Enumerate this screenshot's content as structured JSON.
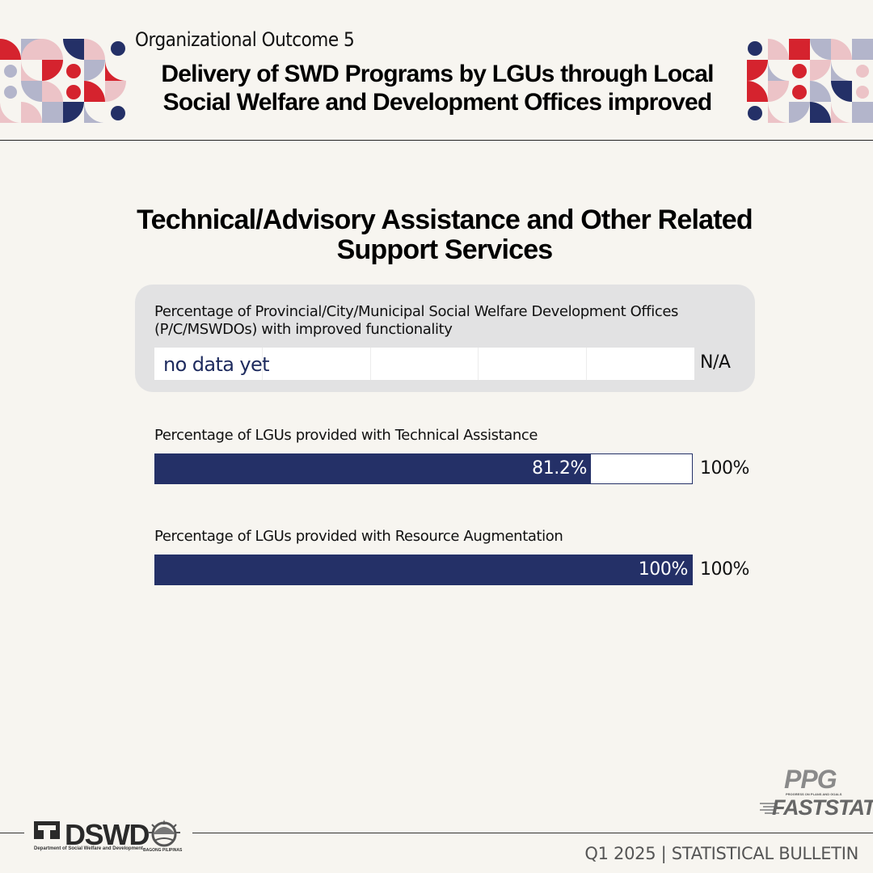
{
  "header": {
    "outcome_label": "Organizational Outcome 5",
    "outcome_title": "Delivery of SWD Programs by LGUs through Local Social Welfare and Development Offices improved"
  },
  "section_title": "Technical/Advisory Assistance and Other Related Support Services",
  "chart_data": {
    "type": "bar",
    "orientation": "horizontal",
    "indicators": [
      {
        "label": "Percentage of Provincial/City/Municipal Social Welfare Development Offices (P/C/MSWDOs) with improved functionality",
        "value": null,
        "value_label": "no data yet",
        "target": null,
        "target_label": "N/A"
      },
      {
        "label": "Percentage of LGUs provided with Technical Assistance",
        "value": 81.2,
        "value_label": "81.2%",
        "target": 100,
        "target_label": "100%"
      },
      {
        "label": "Percentage of LGUs provided with Resource Augmentation",
        "value": 100,
        "value_label": "100%",
        "target": 100,
        "target_label": "100%"
      }
    ],
    "bar_color": "#243067",
    "track_color": "#ffffff"
  },
  "footer": {
    "org_name": "DSWD",
    "org_full": "Department of Social Welfare and Development",
    "partner": "BAGONG PILIPINAS",
    "ppg": "PPG",
    "ppg_sub": "PROGRESS ON PLANS AND GOALS",
    "faststat": "FASTSTAT",
    "bulletin": "Q1 2025 | STATISTICAL BULLETIN"
  },
  "colors": {
    "navy": "#243067",
    "red": "#d5232e",
    "pink": "#ecc3c7",
    "lavender": "#b3b5cb",
    "background": "#f7f5f0",
    "card": "#e2e2e3"
  }
}
